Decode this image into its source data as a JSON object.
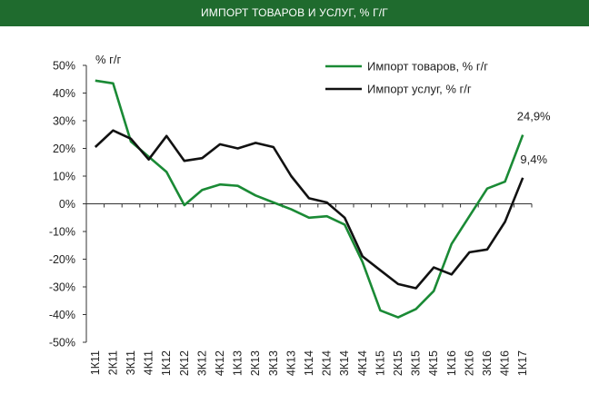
{
  "header": {
    "title": "ИМПОРТ ТОВАРОВ И УСЛУГ, % Г/Г"
  },
  "chart_data": {
    "type": "line",
    "unit_label": "% г/г",
    "categories": [
      "1К11",
      "2К11",
      "3К11",
      "4К11",
      "1К12",
      "2К12",
      "3К12",
      "4К12",
      "1К13",
      "2К13",
      "3К13",
      "4К13",
      "1К14",
      "2К14",
      "3К14",
      "4К14",
      "1К15",
      "2К15",
      "3К15",
      "4К15",
      "1К16",
      "2К16",
      "3К16",
      "4К16",
      "1К17"
    ],
    "y_ticks": [
      "50%",
      "40%",
      "30%",
      "20%",
      "10%",
      "0%",
      "-10%",
      "-20%",
      "-30%",
      "-40%",
      "-50%"
    ],
    "ylim": [
      -50,
      50
    ],
    "legend_position": "top-right",
    "series": [
      {
        "name": "Импорт товаров, % г/г",
        "color": "#1a8a35",
        "values": [
          44.5,
          43.5,
          22.5,
          17,
          11.5,
          -0.5,
          5,
          7,
          6.5,
          3,
          0.5,
          -2,
          -5,
          -4.5,
          -7.5,
          -21,
          -38.5,
          -41,
          -38,
          -31.5,
          -14.5,
          -4.5,
          5.5,
          8,
          24.9
        ]
      },
      {
        "name": "Импорт услуг, % г/г",
        "color": "#111111",
        "values": [
          20.5,
          26.5,
          23.5,
          16,
          24.5,
          15.5,
          16.5,
          21.5,
          20,
          22,
          20.5,
          10,
          2,
          0.5,
          -5,
          -19,
          -24,
          -29,
          -30.5,
          -23,
          -25.5,
          -17.5,
          -16.5,
          -6.5,
          9.4
        ]
      }
    ],
    "annotations": [
      {
        "series": 0,
        "index": 24,
        "text": "24,9%"
      },
      {
        "series": 1,
        "index": 24,
        "text": "9,4%"
      }
    ]
  }
}
